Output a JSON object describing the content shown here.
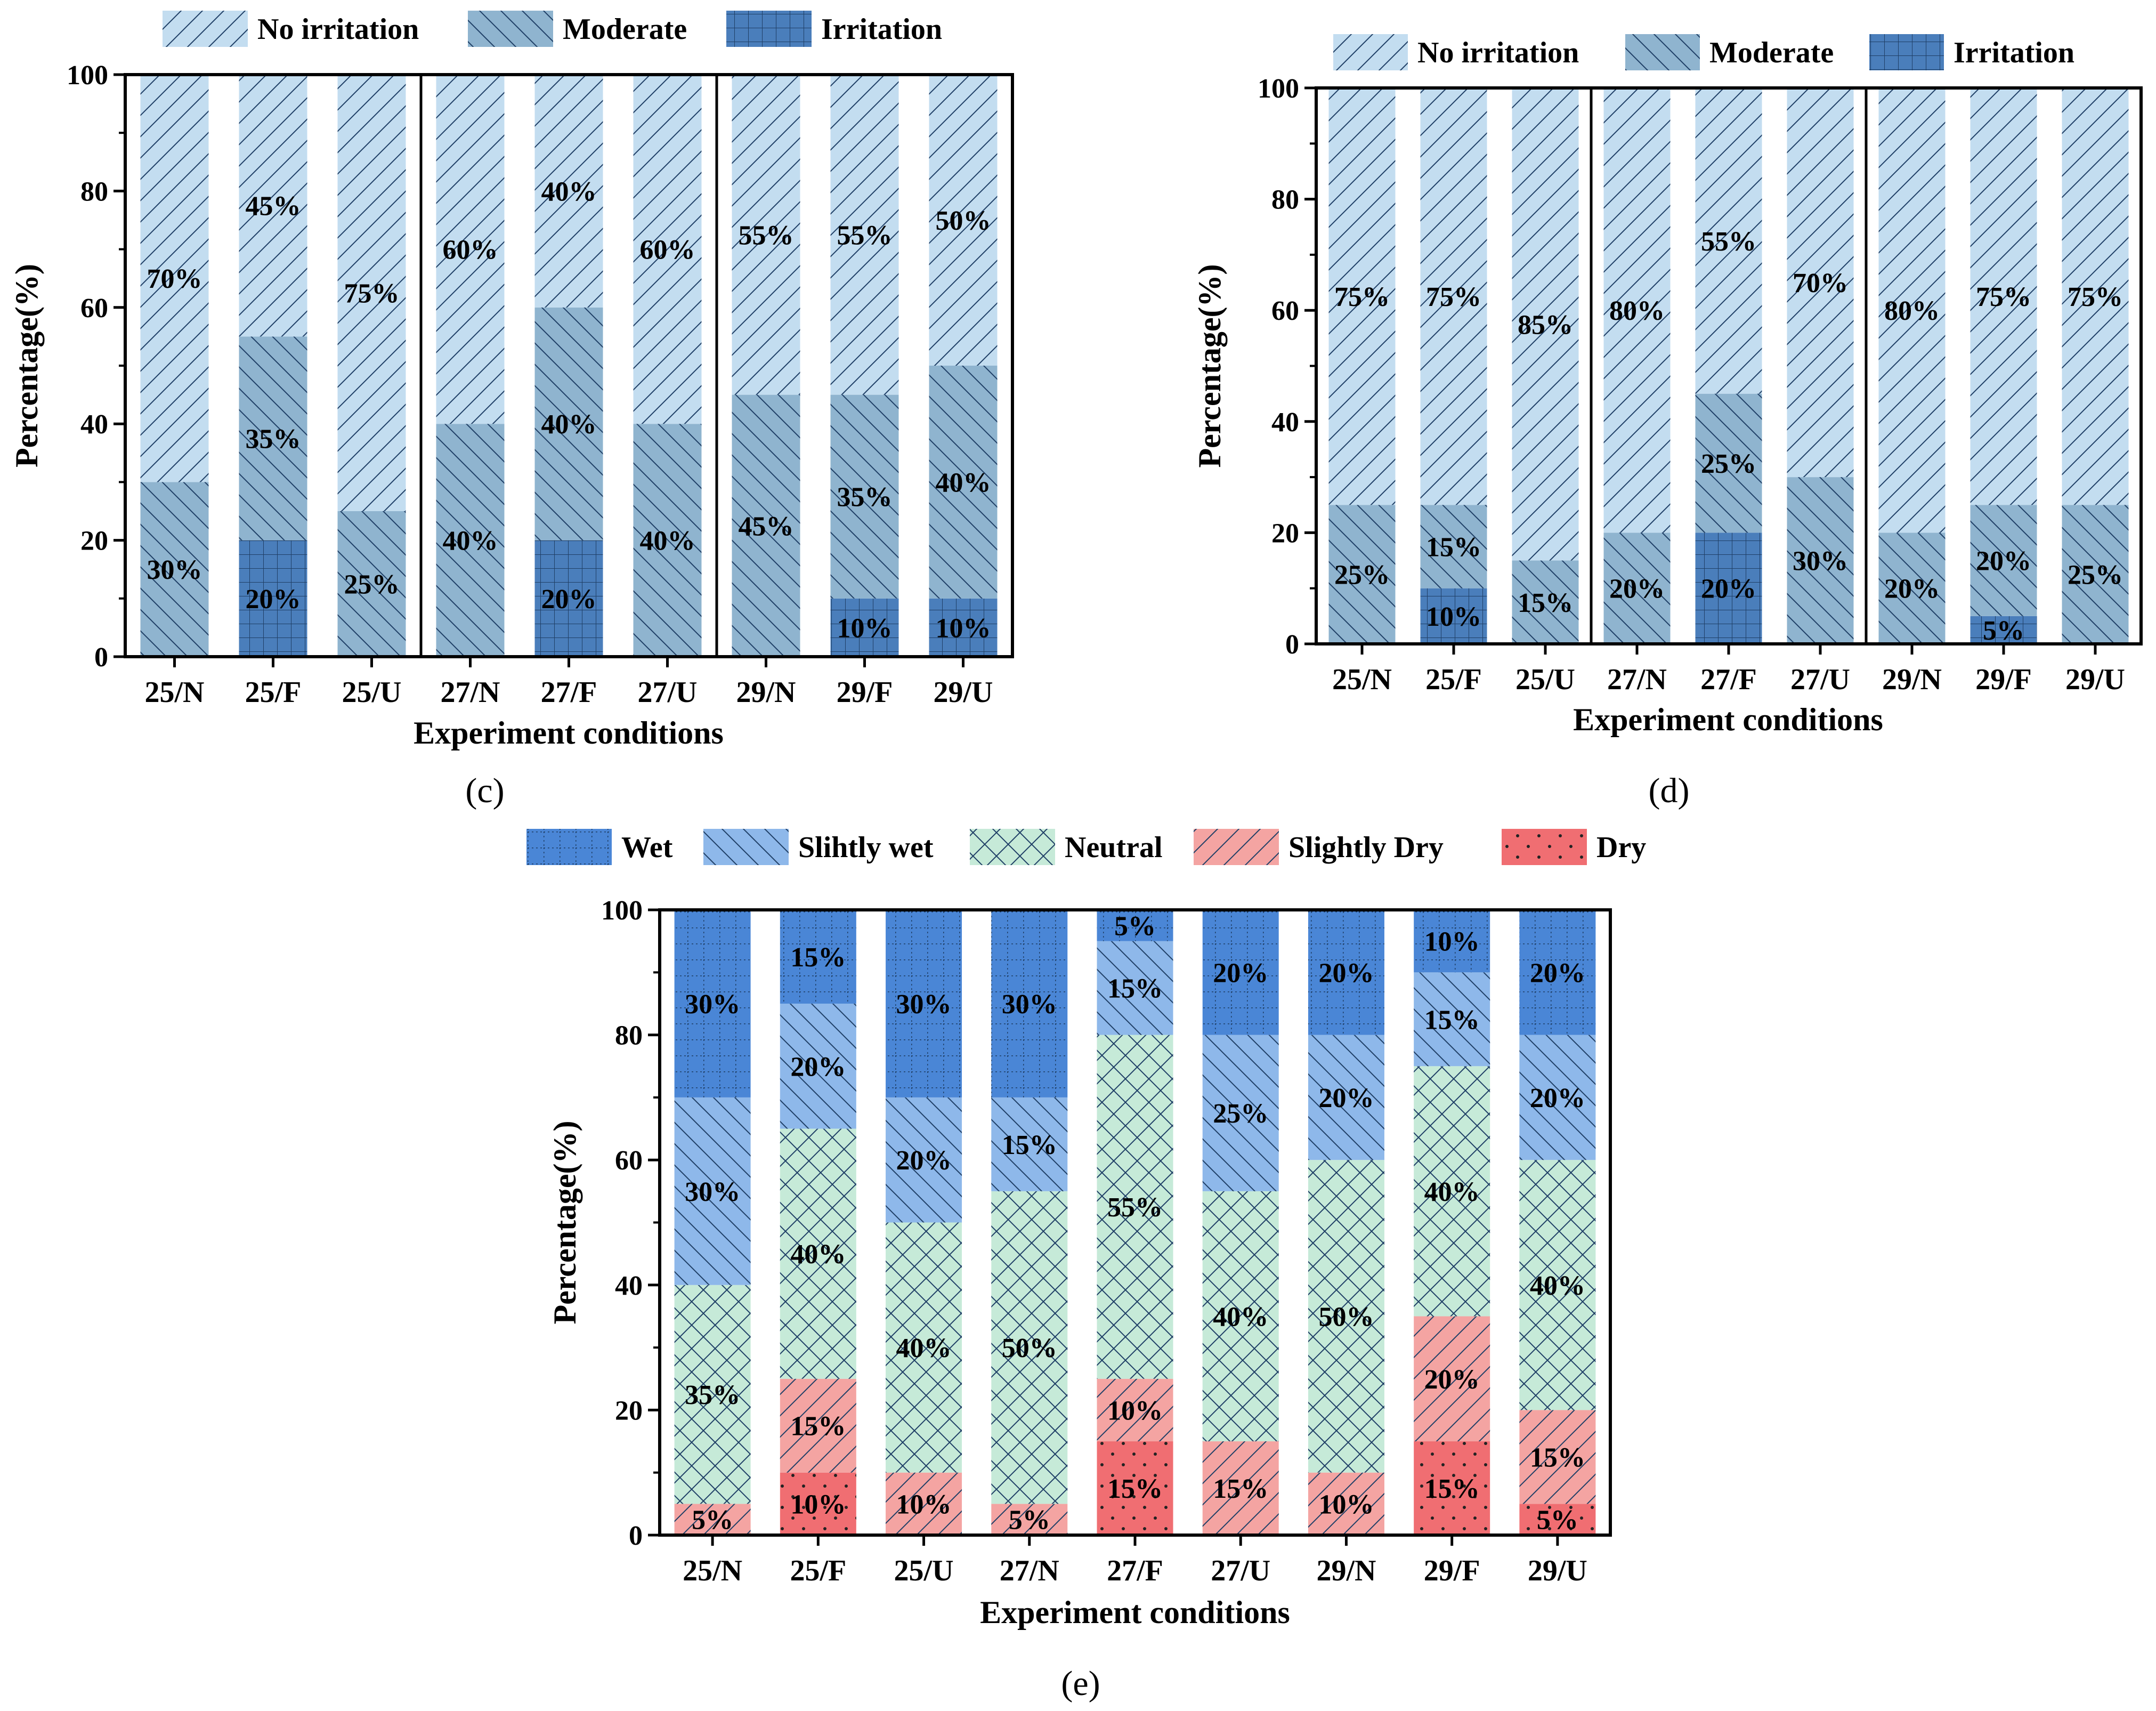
{
  "chart_data": [
    {
      "type": "bar",
      "stacked": true,
      "panel_label": "(c)",
      "categories": [
        "25/N",
        "25/F",
        "25/U",
        "27/N",
        "27/F",
        "27/U",
        "29/N",
        "29/F",
        "29/U"
      ],
      "series": [
        {
          "name": "Irritation",
          "values": [
            0,
            20,
            0,
            0,
            20,
            0,
            0,
            10,
            10
          ],
          "color": "#4a7ebb",
          "pattern": "grid"
        },
        {
          "name": "Moderate",
          "values": [
            30,
            35,
            25,
            40,
            40,
            40,
            45,
            35,
            40
          ],
          "color": "#8fb4cf",
          "pattern": "back"
        },
        {
          "name": "No irritation",
          "values": [
            70,
            45,
            75,
            60,
            40,
            60,
            55,
            55,
            50
          ],
          "color": "#c3ddf0",
          "pattern": "fwd"
        }
      ],
      "legend_order": [
        "No irritation",
        "Moderate",
        "Irritation"
      ],
      "xlabel": "Experiment conditions",
      "ylabel": "Percentage(%)",
      "ylim": [
        0,
        100
      ],
      "yticks": [
        "0",
        "20",
        "40",
        "60",
        "80",
        "100"
      ]
    },
    {
      "type": "bar",
      "stacked": true,
      "panel_label": "(d)",
      "categories": [
        "25/N",
        "25/F",
        "25/U",
        "27/N",
        "27/F",
        "27/U",
        "29/N",
        "29/F",
        "29/U"
      ],
      "series": [
        {
          "name": "Irritation",
          "values": [
            0,
            10,
            0,
            0,
            20,
            0,
            0,
            5,
            0
          ],
          "color": "#4a7ebb",
          "pattern": "grid"
        },
        {
          "name": "Moderate",
          "values": [
            25,
            15,
            15,
            20,
            25,
            30,
            20,
            20,
            25
          ],
          "color": "#8fb4cf",
          "pattern": "back"
        },
        {
          "name": "No irritation",
          "values": [
            75,
            75,
            85,
            80,
            55,
            70,
            80,
            75,
            75
          ],
          "color": "#c3ddf0",
          "pattern": "fwd"
        }
      ],
      "legend_order": [
        "No irritation",
        "Moderate",
        "Irritation"
      ],
      "xlabel": "Experiment conditions",
      "ylabel": "Percentage(%)",
      "ylim": [
        0,
        100
      ],
      "yticks": [
        "0",
        "20",
        "40",
        "60",
        "80",
        "100"
      ]
    },
    {
      "type": "bar",
      "stacked": true,
      "panel_label": "(e)",
      "categories": [
        "25/N",
        "25/F",
        "25/U",
        "27/N",
        "27/F",
        "27/U",
        "29/N",
        "29/F",
        "29/U"
      ],
      "series": [
        {
          "name": "Dry",
          "values": [
            0,
            10,
            0,
            0,
            15,
            0,
            0,
            15,
            5
          ],
          "color": "#f06e72",
          "pattern": "dots"
        },
        {
          "name": "Slightly Dry",
          "values": [
            5,
            15,
            10,
            5,
            10,
            15,
            10,
            20,
            15
          ],
          "color": "#f4a4a2",
          "pattern": "fwd"
        },
        {
          "name": "Neutral",
          "values": [
            35,
            40,
            40,
            50,
            55,
            40,
            50,
            40,
            40
          ],
          "color": "#c6ead8",
          "pattern": "cross"
        },
        {
          "name": "Slihtly wet",
          "values": [
            30,
            20,
            20,
            15,
            15,
            25,
            20,
            15,
            20
          ],
          "color": "#8eb8ea",
          "pattern": "back"
        },
        {
          "name": "Wet",
          "values": [
            30,
            15,
            30,
            30,
            5,
            20,
            20,
            10,
            20
          ],
          "color": "#4a86d6",
          "pattern": "dgrid"
        }
      ],
      "legend_order": [
        "Wet",
        "Slihtly wet",
        "Neutral",
        "Slightly Dry",
        "Dry"
      ],
      "xlabel": "Experiment conditions",
      "ylabel": "Percentage(%)",
      "ylim": [
        0,
        100
      ],
      "yticks": [
        "0",
        "20",
        "40",
        "60",
        "80",
        "100"
      ]
    }
  ]
}
